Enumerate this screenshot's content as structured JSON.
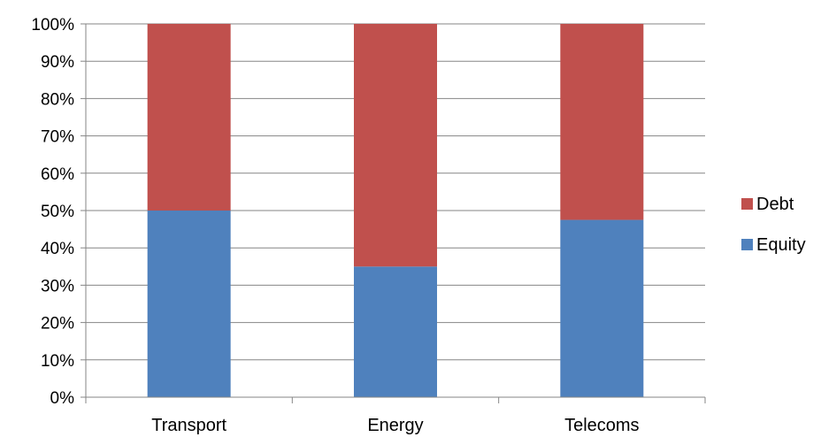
{
  "chart_data": {
    "type": "bar",
    "stacked": true,
    "stack_mode": "percent",
    "categories": [
      "Transport",
      "Energy",
      "Telecoms"
    ],
    "series": [
      {
        "name": "Equity",
        "values": [
          50,
          35,
          47.5
        ],
        "color": "#4F81BD"
      },
      {
        "name": "Debt",
        "values": [
          50,
          65,
          52.5
        ],
        "color": "#C0504D"
      }
    ],
    "y_ticks": [
      "0%",
      "10%",
      "20%",
      "30%",
      "40%",
      "50%",
      "60%",
      "70%",
      "80%",
      "90%",
      "100%"
    ],
    "ylim": [
      0,
      100
    ],
    "grid": true,
    "legend_position": "right",
    "legend_order": [
      "Debt",
      "Equity"
    ],
    "title": "",
    "xlabel": "",
    "ylabel": ""
  }
}
